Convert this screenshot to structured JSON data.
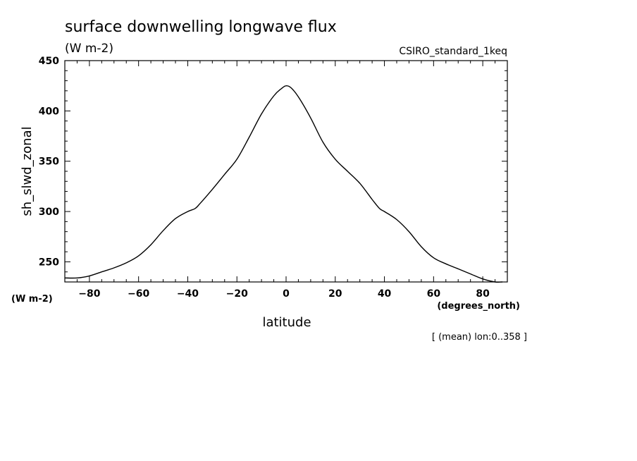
{
  "chart_data": {
    "type": "line",
    "title": "surface downwelling longwave flux",
    "title_units": "(W m-2)",
    "run_label": "CSIRO_standard_1keq",
    "xlabel": "latitude",
    "x_units": "(degrees_north)",
    "ylabel": "sh_slwd_zonal",
    "y_units": "(W m-2)",
    "footnote": "[ (mean) lon:0..358 ]",
    "xlim": [
      -90,
      90
    ],
    "ylim": [
      230,
      450
    ],
    "x_ticks": [
      -80,
      -60,
      -40,
      -20,
      0,
      20,
      40,
      60,
      80
    ],
    "y_ticks": [
      250,
      300,
      350,
      400,
      450
    ],
    "x_tick_labels": [
      "-80",
      "-60",
      "-40",
      "-20",
      "0",
      "20",
      "40",
      "60",
      "80"
    ],
    "y_tick_labels": [
      "250",
      "300",
      "350",
      "400",
      "450"
    ],
    "grid": false,
    "series": [
      {
        "color": "#000000",
        "x": [
          -90,
          -85,
          -80,
          -75,
          -70,
          -65,
          -60,
          -55,
          -50,
          -45,
          -40,
          -37,
          -35,
          -30,
          -25,
          -20,
          -15,
          -10,
          -5,
          -2,
          0,
          2,
          5,
          10,
          15,
          20,
          25,
          30,
          35,
          38,
          40,
          45,
          50,
          55,
          60,
          65,
          70,
          75,
          80,
          85,
          88
        ],
        "y": [
          234,
          234,
          236,
          240,
          244,
          249,
          256,
          267,
          281,
          293,
          300,
          303,
          308,
          322,
          337,
          352,
          374,
          397,
          415,
          422,
          425,
          423,
          414,
          393,
          369,
          352,
          340,
          328,
          312,
          303,
          300,
          292,
          280,
          265,
          254,
          248,
          243,
          238,
          233,
          230,
          229
        ]
      }
    ]
  }
}
